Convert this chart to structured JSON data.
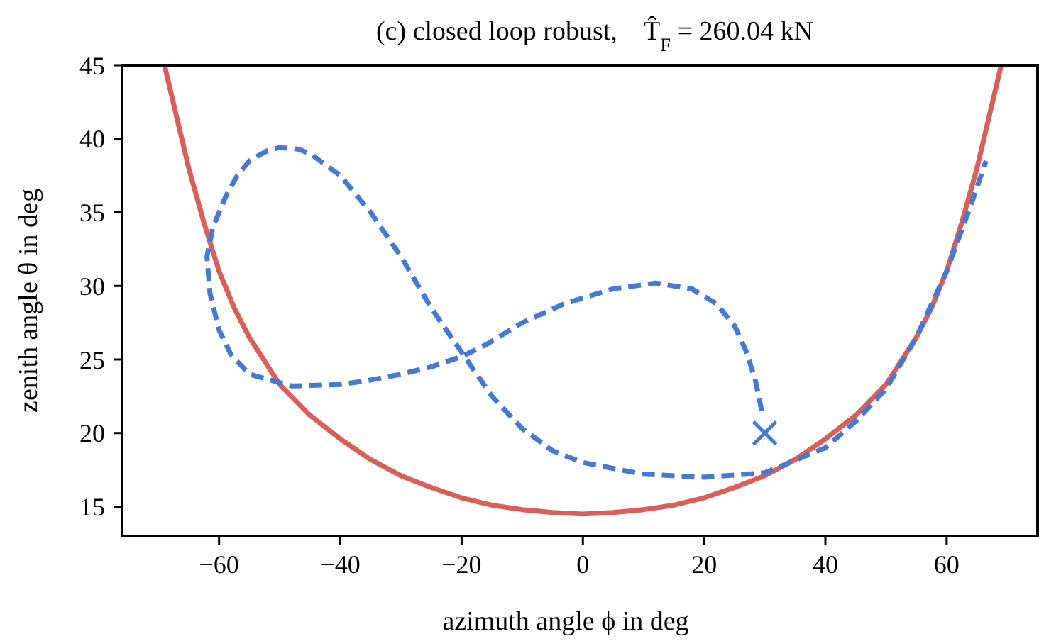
{
  "chart_data": {
    "type": "line",
    "title": "(c) closed loop robust,    T̂$_{F}$ = 260.04 kN",
    "xlabel": "azimuth angle ϕ in deg",
    "ylabel": "zenith angle θ in deg",
    "xlim": [
      -76,
      75
    ],
    "ylim": [
      13,
      45
    ],
    "xticks": [
      -60,
      -40,
      -20,
      0,
      20,
      40,
      60
    ],
    "yticks": [
      15,
      20,
      25,
      30,
      35,
      40,
      45
    ],
    "grid": false,
    "series": [
      {
        "color": "#d9605a",
        "line_style": "solid",
        "x": [
          -69,
          -67,
          -65,
          -62.5,
          -60,
          -57.5,
          -55,
          -50,
          -45,
          -40,
          -35,
          -30,
          -25,
          -20,
          -15,
          -10,
          -5,
          0,
          5,
          10,
          15,
          20,
          25,
          30,
          35,
          40,
          45,
          50,
          55,
          57.5,
          60,
          62.5,
          65,
          67,
          69
        ],
        "values": [
          45,
          41.5,
          38,
          34.3,
          31,
          28.5,
          26.5,
          23.3,
          21.2,
          19.6,
          18.2,
          17.1,
          16.3,
          15.6,
          15.1,
          14.8,
          14.6,
          14.5,
          14.6,
          14.8,
          15.1,
          15.6,
          16.3,
          17.1,
          18.2,
          19.6,
          21.2,
          23.3,
          26.5,
          28.5,
          31,
          34.3,
          38,
          41.5,
          45
        ]
      },
      {
        "color": "#4878cf",
        "line_style": "dashed",
        "x": [
          29.5,
          28.5,
          27,
          25,
          22,
          18,
          12,
          5,
          -3,
          -10,
          -16,
          -20,
          -25,
          -30,
          -35,
          -40,
          -48,
          -55,
          -58,
          -60,
          -61.5,
          -62,
          -61,
          -59,
          -57,
          -55,
          -52,
          -50,
          -47,
          -45,
          -40,
          -35,
          -30,
          -25,
          -20,
          -15,
          -10,
          -5,
          0,
          10,
          20,
          30,
          40,
          45,
          50,
          55,
          60,
          64,
          66.5
        ],
        "values": [
          21.5,
          23.5,
          25.5,
          27.3,
          28.8,
          29.8,
          30.2,
          29.8,
          28.8,
          27.5,
          26,
          25.2,
          24.5,
          24,
          23.6,
          23.3,
          23.2,
          24,
          25.3,
          27,
          29.5,
          32,
          34,
          36,
          37.5,
          38.5,
          39.2,
          39.4,
          39.3,
          39,
          37.5,
          35,
          32,
          28.5,
          25.5,
          22.5,
          20.3,
          18.8,
          18,
          17.2,
          17,
          17.3,
          19,
          20.8,
          23,
          26.5,
          31,
          35.5,
          38.5
        ]
      },
      {
        "type": "scatter",
        "color": "#4878cf",
        "marker": "cross",
        "x": [
          30
        ],
        "values": [
          20
        ]
      }
    ]
  }
}
